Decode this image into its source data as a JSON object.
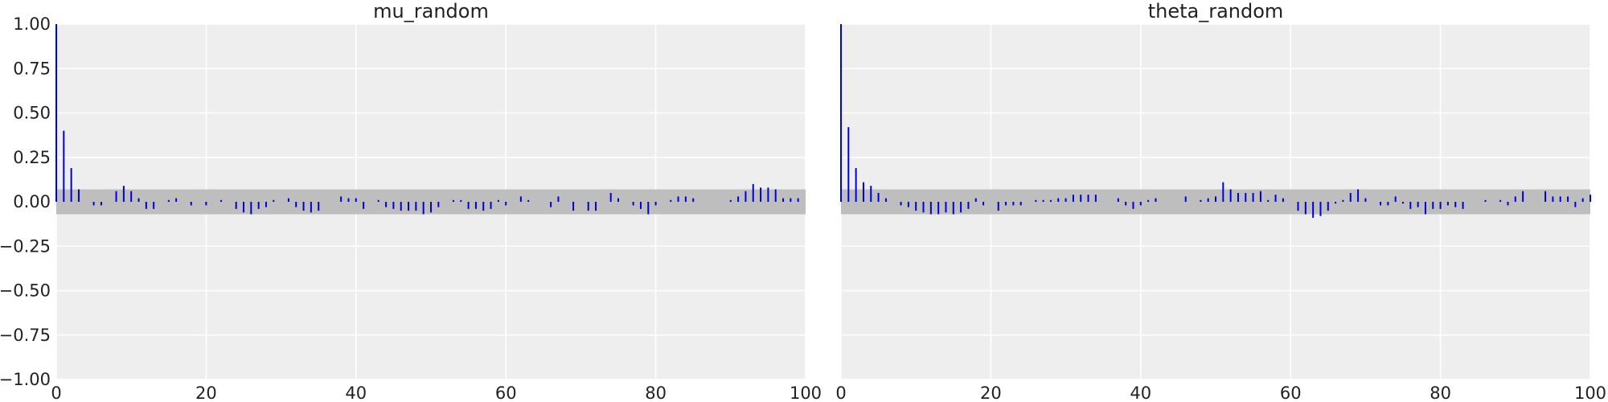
{
  "colors": {
    "stem": "#0000dd",
    "band": "#bebebe",
    "plot_bg": "#eeeeee",
    "grid": "#ffffff"
  },
  "chart_data": [
    {
      "type": "stem",
      "title": "mu_random",
      "xlim": [
        0,
        100
      ],
      "ylim": [
        -1,
        1
      ],
      "x_ticks": [
        0,
        20,
        40,
        60,
        80,
        100
      ],
      "y_ticks": [
        1.0,
        0.75,
        0.5,
        0.25,
        0.0,
        -0.25,
        -0.5,
        -0.75,
        -1.0
      ],
      "x_tick_labels": [
        "0",
        "20",
        "40",
        "60",
        "80",
        "100"
      ],
      "y_tick_labels": [
        "1.00",
        "0.75",
        "0.50",
        "0.25",
        "0.00",
        "−0.25",
        "−0.50",
        "−0.75",
        "−1.00"
      ],
      "confidence_band": [
        -0.07,
        0.07
      ],
      "grid": true,
      "values": [
        1.0,
        0.4,
        0.19,
        0.07,
        0.0,
        -0.02,
        -0.02,
        0.0,
        0.06,
        0.09,
        0.06,
        0.02,
        -0.04,
        -0.04,
        0.0,
        0.01,
        0.02,
        0.0,
        -0.02,
        0.0,
        -0.02,
        0.0,
        0.01,
        0.0,
        -0.04,
        -0.06,
        -0.07,
        -0.04,
        -0.03,
        0.01,
        0.0,
        0.02,
        -0.03,
        -0.05,
        -0.06,
        -0.05,
        0.0,
        0.0,
        0.03,
        0.02,
        0.02,
        -0.04,
        0.0,
        0.01,
        -0.03,
        -0.04,
        -0.05,
        -0.05,
        -0.05,
        -0.07,
        -0.06,
        -0.03,
        0.0,
        0.01,
        0.01,
        -0.04,
        -0.04,
        -0.05,
        -0.04,
        0.01,
        -0.02,
        0.0,
        0.03,
        0.01,
        0.0,
        0.0,
        -0.03,
        0.03,
        0.0,
        -0.05,
        0.0,
        -0.05,
        -0.05,
        0.0,
        0.05,
        0.02,
        0.0,
        -0.02,
        -0.04,
        -0.07,
        -0.02,
        0.0,
        0.01,
        0.03,
        0.03,
        0.02,
        0.0,
        0.0,
        0.0,
        0.0,
        0.01,
        0.03,
        0.06,
        0.1,
        0.08,
        0.08,
        0.07,
        0.02,
        0.02,
        0.02
      ]
    },
    {
      "type": "stem",
      "title": "theta_random",
      "xlim": [
        0,
        100
      ],
      "ylim": [
        -1,
        1
      ],
      "x_ticks": [
        0,
        20,
        40,
        60,
        80,
        100
      ],
      "x_tick_labels": [
        "0",
        "20",
        "40",
        "60",
        "80",
        "100"
      ],
      "confidence_band": [
        -0.07,
        0.07
      ],
      "grid": true,
      "values": [
        1.0,
        0.42,
        0.19,
        0.11,
        0.09,
        0.05,
        0.02,
        0.0,
        -0.02,
        -0.03,
        -0.05,
        -0.06,
        -0.07,
        -0.07,
        -0.06,
        -0.07,
        -0.06,
        -0.04,
        0.02,
        -0.02,
        0.0,
        -0.05,
        -0.02,
        -0.02,
        -0.02,
        0.0,
        0.01,
        0.01,
        0.01,
        0.02,
        0.02,
        0.04,
        0.04,
        0.04,
        0.04,
        0.0,
        0.0,
        0.02,
        -0.02,
        -0.04,
        -0.02,
        0.01,
        0.02,
        0.0,
        0.0,
        0.0,
        0.03,
        0.0,
        0.01,
        0.02,
        0.03,
        0.11,
        0.07,
        0.05,
        0.05,
        0.05,
        0.06,
        0.01,
        0.04,
        0.02,
        0.0,
        -0.05,
        -0.07,
        -0.09,
        -0.08,
        -0.05,
        -0.01,
        0.01,
        0.05,
        0.07,
        0.02,
        0.0,
        -0.02,
        -0.02,
        0.03,
        -0.01,
        -0.04,
        -0.03,
        -0.07,
        -0.04,
        -0.04,
        -0.02,
        -0.03,
        -0.04,
        0.0,
        0.0,
        0.01,
        0.0,
        0.01,
        -0.02,
        0.03,
        0.06,
        0.0,
        0.0,
        0.06,
        0.03,
        0.03,
        0.03,
        -0.03,
        0.02,
        0.04
      ]
    }
  ]
}
